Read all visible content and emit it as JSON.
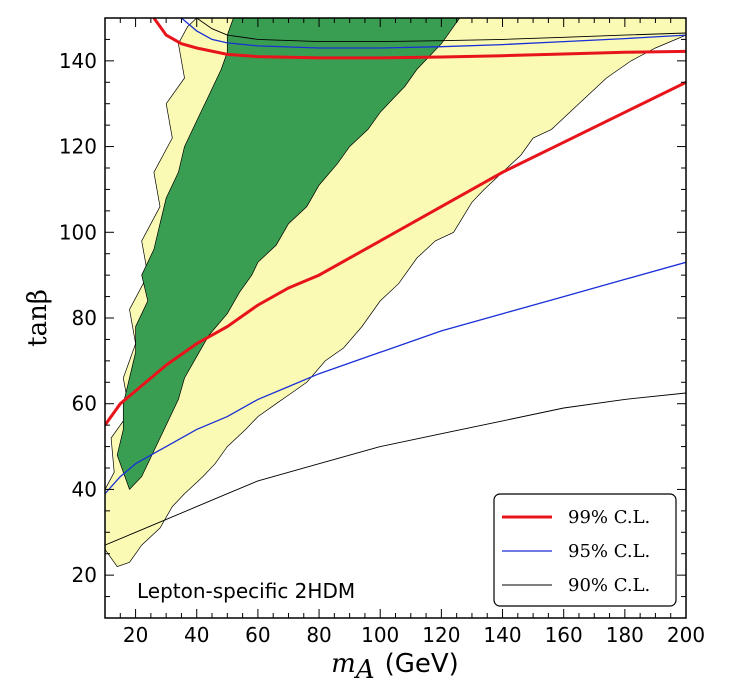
{
  "chart_data": {
    "type": "area",
    "title": "",
    "annotation": "Lepton-specific 2HDM",
    "xlabel": {
      "symbol": "m",
      "subscript": "A",
      "unit": "(GeV)"
    },
    "ylabel": "tanβ",
    "xlim": [
      10,
      200
    ],
    "ylim": [
      10,
      150
    ],
    "xticks": [
      20,
      40,
      60,
      80,
      100,
      120,
      140,
      160,
      180,
      200
    ],
    "yticks": [
      20,
      40,
      60,
      80,
      100,
      120,
      140
    ],
    "grid": false,
    "legend_position": "bottom-right",
    "legend": [
      {
        "label": "99% C.L.",
        "color": "#e8141c"
      },
      {
        "label": "95% C.L.",
        "color": "#1a2fd6"
      },
      {
        "label": "90% C.L.",
        "color": "#000000"
      }
    ],
    "regions": [
      {
        "name": "",
        "color": "#fafab4",
        "polygon": [
          [
            10,
            26
          ],
          [
            14,
            22
          ],
          [
            18,
            23
          ],
          [
            22,
            27
          ],
          [
            28,
            31
          ],
          [
            32,
            36
          ],
          [
            36,
            39
          ],
          [
            42,
            43
          ],
          [
            46,
            46
          ],
          [
            50,
            50
          ],
          [
            56,
            54
          ],
          [
            60,
            57
          ],
          [
            66,
            60
          ],
          [
            70,
            62
          ],
          [
            76,
            65
          ],
          [
            82,
            70
          ],
          [
            88,
            73
          ],
          [
            94,
            78
          ],
          [
            100,
            84
          ],
          [
            106,
            88
          ],
          [
            112,
            94
          ],
          [
            118,
            98
          ],
          [
            124,
            100
          ],
          [
            130,
            107
          ],
          [
            134,
            110
          ],
          [
            140,
            114
          ],
          [
            146,
            118
          ],
          [
            150,
            122
          ],
          [
            156,
            124
          ],
          [
            162,
            128
          ],
          [
            168,
            132
          ],
          [
            174,
            136
          ],
          [
            182,
            140
          ],
          [
            190,
            143
          ],
          [
            200,
            146
          ],
          [
            200,
            150
          ],
          [
            40,
            150
          ],
          [
            37,
            148
          ],
          [
            34,
            144
          ],
          [
            36,
            136
          ],
          [
            30,
            130
          ],
          [
            32,
            122
          ],
          [
            26,
            114
          ],
          [
            28,
            106
          ],
          [
            22,
            98
          ],
          [
            24,
            90
          ],
          [
            18,
            82
          ],
          [
            20,
            74
          ],
          [
            16,
            66
          ],
          [
            18,
            58
          ],
          [
            12,
            52
          ],
          [
            13,
            44
          ],
          [
            10,
            40
          ]
        ]
      },
      {
        "name": "",
        "color": "#3a9e52",
        "polygon": [
          [
            18,
            40
          ],
          [
            22,
            43
          ],
          [
            26,
            49
          ],
          [
            30,
            55
          ],
          [
            34,
            61
          ],
          [
            36,
            66
          ],
          [
            40,
            71
          ],
          [
            44,
            76
          ],
          [
            50,
            81
          ],
          [
            54,
            86
          ],
          [
            58,
            90
          ],
          [
            60,
            93
          ],
          [
            66,
            97
          ],
          [
            70,
            102
          ],
          [
            76,
            106
          ],
          [
            80,
            111
          ],
          [
            86,
            116
          ],
          [
            90,
            120
          ],
          [
            96,
            124
          ],
          [
            100,
            128
          ],
          [
            104,
            131
          ],
          [
            108,
            134
          ],
          [
            112,
            138
          ],
          [
            116,
            141
          ],
          [
            120,
            144
          ],
          [
            124,
            148
          ],
          [
            126,
            150
          ],
          [
            52,
            150
          ],
          [
            50,
            146
          ],
          [
            50,
            142
          ],
          [
            48,
            138
          ],
          [
            44,
            132
          ],
          [
            40,
            126
          ],
          [
            36,
            120
          ],
          [
            34,
            114
          ],
          [
            30,
            108
          ],
          [
            28,
            102
          ],
          [
            26,
            96
          ],
          [
            22,
            90
          ],
          [
            24,
            84
          ],
          [
            20,
            78
          ],
          [
            20,
            72
          ],
          [
            18,
            66
          ],
          [
            16,
            60
          ],
          [
            16,
            54
          ],
          [
            14,
            48
          ]
        ]
      }
    ],
    "series": [
      {
        "name": "99% C.L.",
        "color": "#e8141c",
        "x": [
          10,
          15,
          20,
          25,
          30,
          40,
          50,
          60,
          70,
          80,
          100,
          120,
          140,
          160,
          180,
          200
        ],
        "y": [
          55,
          60,
          63,
          66,
          69,
          74,
          78,
          83,
          87,
          90,
          98,
          106,
          114,
          121,
          128,
          135
        ]
      },
      {
        "name": "99% C.L.",
        "color": "#e8141c",
        "x": [
          26,
          30,
          35,
          40,
          50,
          60,
          80,
          100,
          120,
          140,
          160,
          180,
          200
        ],
        "y": [
          150,
          146,
          144,
          143,
          141.5,
          141,
          140.7,
          140.7,
          140.9,
          141.2,
          141.6,
          142,
          142.2
        ]
      },
      {
        "name": "95% C.L.",
        "color": "#1a2fd6",
        "x": [
          10,
          15,
          20,
          25,
          30,
          40,
          50,
          60,
          70,
          80,
          100,
          120,
          140,
          160,
          180,
          200
        ],
        "y": [
          39,
          43,
          46,
          48,
          50,
          54,
          57,
          61,
          64,
          67,
          72,
          77,
          81,
          85,
          89,
          93
        ]
      },
      {
        "name": "95% C.L.",
        "color": "#1a2fd6",
        "x": [
          35,
          40,
          45,
          50,
          60,
          80,
          100,
          120,
          140,
          160,
          180,
          200
        ],
        "y": [
          150,
          147,
          145,
          144.2,
          143.5,
          143,
          143,
          143.3,
          143.8,
          144.5,
          145.2,
          146
        ]
      },
      {
        "name": "90% C.L.",
        "color": "#000000",
        "x": [
          10,
          20,
          30,
          40,
          50,
          60,
          80,
          100,
          120,
          140,
          160,
          180,
          200
        ],
        "y": [
          27,
          30,
          33,
          36,
          39,
          42,
          46,
          50,
          53,
          56,
          59,
          61,
          62.5
        ]
      },
      {
        "name": "90% C.L.",
        "color": "#000000",
        "x": [
          40,
          45,
          50,
          60,
          80,
          100,
          120,
          140,
          160,
          180,
          200
        ],
        "y": [
          150,
          147.5,
          146,
          145,
          144.5,
          144.5,
          144.7,
          145,
          145.5,
          146,
          146.5
        ]
      }
    ]
  }
}
